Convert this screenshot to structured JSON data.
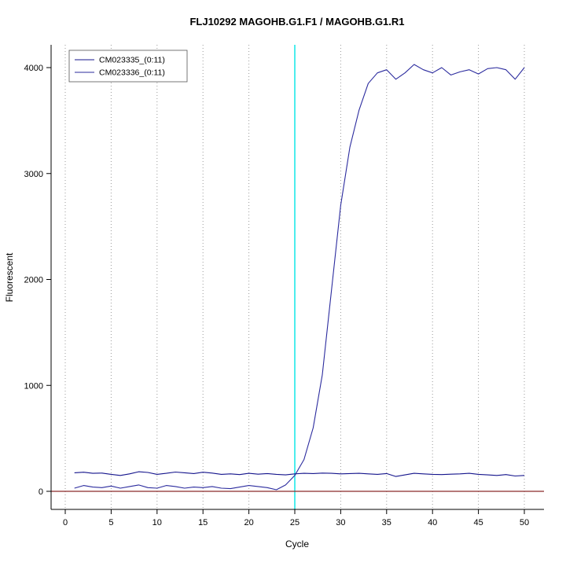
{
  "title": "FLJ10292  MAGOHB.G1.F1 / MAGOHB.G1.R1",
  "colors": {
    "series1": "#14148c",
    "series2": "#2b2b9e",
    "threshold_line": "#00e5e5",
    "zero_line": "#8b2a2a",
    "grid": "#9a9a9a",
    "axis": "#000000",
    "legend_border": "#555555"
  },
  "legend": {
    "items": [
      {
        "label": "CM023335_(0:11)",
        "color": "#14148c"
      },
      {
        "label": "CM023336_(0:11)",
        "color": "#2b2b9e"
      }
    ]
  },
  "chart_data": {
    "type": "line",
    "title": "FLJ10292  MAGOHB.G1.F1 / MAGOHB.G1.R1",
    "xlabel": "Cycle",
    "ylabel": "Fluorescent",
    "xlim": [
      0,
      50
    ],
    "ylim": [
      0,
      4200
    ],
    "x_ticks": [
      0,
      5,
      10,
      15,
      20,
      25,
      30,
      35,
      40,
      45,
      50
    ],
    "y_ticks": [
      0,
      1000,
      2000,
      3000,
      4000
    ],
    "grid": "vertical-dotted",
    "legend_position": "top-left",
    "annotations": {
      "threshold_cycle_x": 25,
      "baseline_y": 0
    },
    "x": [
      1,
      2,
      3,
      4,
      5,
      6,
      7,
      8,
      9,
      10,
      11,
      12,
      13,
      14,
      15,
      16,
      17,
      18,
      19,
      20,
      21,
      22,
      23,
      24,
      25,
      26,
      27,
      28,
      29,
      30,
      31,
      32,
      33,
      34,
      35,
      36,
      37,
      38,
      39,
      40,
      41,
      42,
      43,
      44,
      45,
      46,
      47,
      48,
      49,
      50
    ],
    "series": [
      {
        "name": "CM023335_(0:11)",
        "values": [
          175,
          180,
          170,
          172,
          160,
          150,
          165,
          185,
          178,
          160,
          170,
          182,
          175,
          168,
          180,
          172,
          160,
          165,
          158,
          170,
          162,
          168,
          160,
          155,
          165,
          170,
          168,
          172,
          170,
          165,
          168,
          170,
          165,
          160,
          168,
          140,
          155,
          170,
          165,
          160,
          158,
          162,
          165,
          170,
          160,
          155,
          150,
          158,
          145,
          150
        ]
      },
      {
        "name": "CM023336_(0:11)",
        "values": [
          30,
          55,
          40,
          35,
          50,
          30,
          45,
          60,
          35,
          30,
          55,
          45,
          30,
          40,
          35,
          45,
          30,
          25,
          40,
          55,
          45,
          35,
          15,
          60,
          150,
          300,
          600,
          1100,
          1900,
          2700,
          3250,
          3600,
          3850,
          3950,
          3980,
          3890,
          3950,
          4030,
          3980,
          3950,
          4000,
          3930,
          3960,
          3980,
          3940,
          3990,
          4000,
          3980,
          3890,
          4000
        ]
      }
    ]
  }
}
